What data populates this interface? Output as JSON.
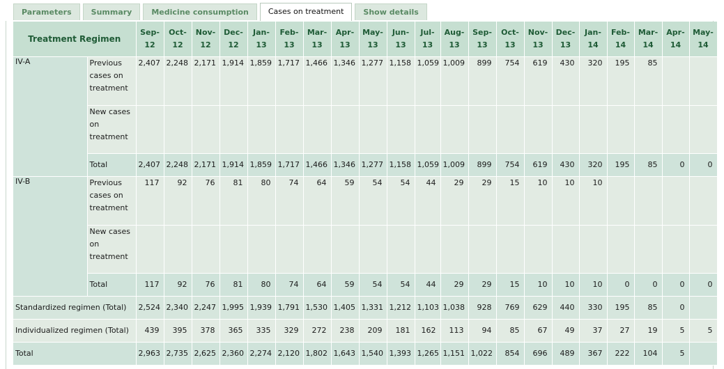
{
  "tabs": [
    {
      "label": "Parameters",
      "active": false
    },
    {
      "label": "Summary",
      "active": false
    },
    {
      "label": "Medicine consumption",
      "active": false
    },
    {
      "label": "Cases on treatment",
      "active": true
    },
    {
      "label": "Show details",
      "active": false
    }
  ],
  "table": {
    "header_label": "Treatment Regimen",
    "months": [
      [
        "Sep-",
        "12"
      ],
      [
        "Oct-",
        "12"
      ],
      [
        "Nov-",
        "12"
      ],
      [
        "Dec-",
        "12"
      ],
      [
        "Jan-",
        "13"
      ],
      [
        "Feb-",
        "13"
      ],
      [
        "Mar-",
        "13"
      ],
      [
        "Apr-",
        "13"
      ],
      [
        "May-",
        "13"
      ],
      [
        "Jun-",
        "13"
      ],
      [
        "Jul-",
        "13"
      ],
      [
        "Aug-",
        "13"
      ],
      [
        "Sep-",
        "13"
      ],
      [
        "Oct-",
        "13"
      ],
      [
        "Nov-",
        "13"
      ],
      [
        "Dec-",
        "13"
      ],
      [
        "Jan-",
        "14"
      ],
      [
        "Feb-",
        "14"
      ],
      [
        "Mar-",
        "14"
      ],
      [
        "Apr-",
        "14"
      ],
      [
        "May-",
        "14"
      ]
    ],
    "groups": [
      {
        "name": "IV-A",
        "rows": [
          {
            "label": "Previous cases on treatment",
            "type": "detail",
            "values": [
              "2,407",
              "2,248",
              "2,171",
              "1,914",
              "1,859",
              "1,717",
              "1,466",
              "1,346",
              "1,277",
              "1,158",
              "1,059",
              "1,009",
              "899",
              "754",
              "619",
              "430",
              "320",
              "195",
              "85",
              "",
              ""
            ]
          },
          {
            "label": "New cases on treatment",
            "type": "detail",
            "values": [
              "",
              "",
              "",
              "",
              "",
              "",
              "",
              "",
              "",
              "",
              "",
              "",
              "",
              "",
              "",
              "",
              "",
              "",
              "",
              "",
              ""
            ]
          },
          {
            "label": "Total",
            "type": "total",
            "values": [
              "2,407",
              "2,248",
              "2,171",
              "1,914",
              "1,859",
              "1,717",
              "1,466",
              "1,346",
              "1,277",
              "1,158",
              "1,059",
              "1,009",
              "899",
              "754",
              "619",
              "430",
              "320",
              "195",
              "85",
              "0",
              "0"
            ]
          }
        ]
      },
      {
        "name": "IV-B",
        "rows": [
          {
            "label": "Previous cases on treatment",
            "type": "detail",
            "values": [
              "117",
              "92",
              "76",
              "81",
              "80",
              "74",
              "64",
              "59",
              "54",
              "54",
              "44",
              "29",
              "29",
              "15",
              "10",
              "10",
              "10",
              "",
              "",
              "",
              ""
            ]
          },
          {
            "label": "New cases on treatment",
            "type": "detail",
            "values": [
              "",
              "",
              "",
              "",
              "",
              "",
              "",
              "",
              "",
              "",
              "",
              "",
              "",
              "",
              "",
              "",
              "",
              "",
              "",
              "",
              ""
            ]
          },
          {
            "label": "Total",
            "type": "total",
            "values": [
              "117",
              "92",
              "76",
              "81",
              "80",
              "74",
              "64",
              "59",
              "54",
              "54",
              "44",
              "29",
              "29",
              "15",
              "10",
              "10",
              "10",
              "0",
              "0",
              "0",
              "0"
            ]
          }
        ]
      }
    ],
    "summary_rows": [
      {
        "label": "Standardized regimen (Total)",
        "values": [
          "2,524",
          "2,340",
          "2,247",
          "1,995",
          "1,939",
          "1,791",
          "1,530",
          "1,405",
          "1,331",
          "1,212",
          "1,103",
          "1,038",
          "928",
          "769",
          "629",
          "440",
          "330",
          "195",
          "85",
          "0",
          ""
        ]
      },
      {
        "label": "Individualized regimen (Total)",
        "values": [
          "439",
          "395",
          "378",
          "365",
          "335",
          "329",
          "272",
          "238",
          "209",
          "181",
          "162",
          "113",
          "94",
          "85",
          "67",
          "49",
          "37",
          "27",
          "19",
          "5",
          "5"
        ]
      },
      {
        "label": "Total",
        "values": [
          "2,963",
          "2,735",
          "2,625",
          "2,360",
          "2,274",
          "2,120",
          "1,802",
          "1,643",
          "1,540",
          "1,393",
          "1,265",
          "1,151",
          "1,022",
          "854",
          "696",
          "489",
          "367",
          "222",
          "104",
          "5",
          ""
        ]
      }
    ]
  }
}
